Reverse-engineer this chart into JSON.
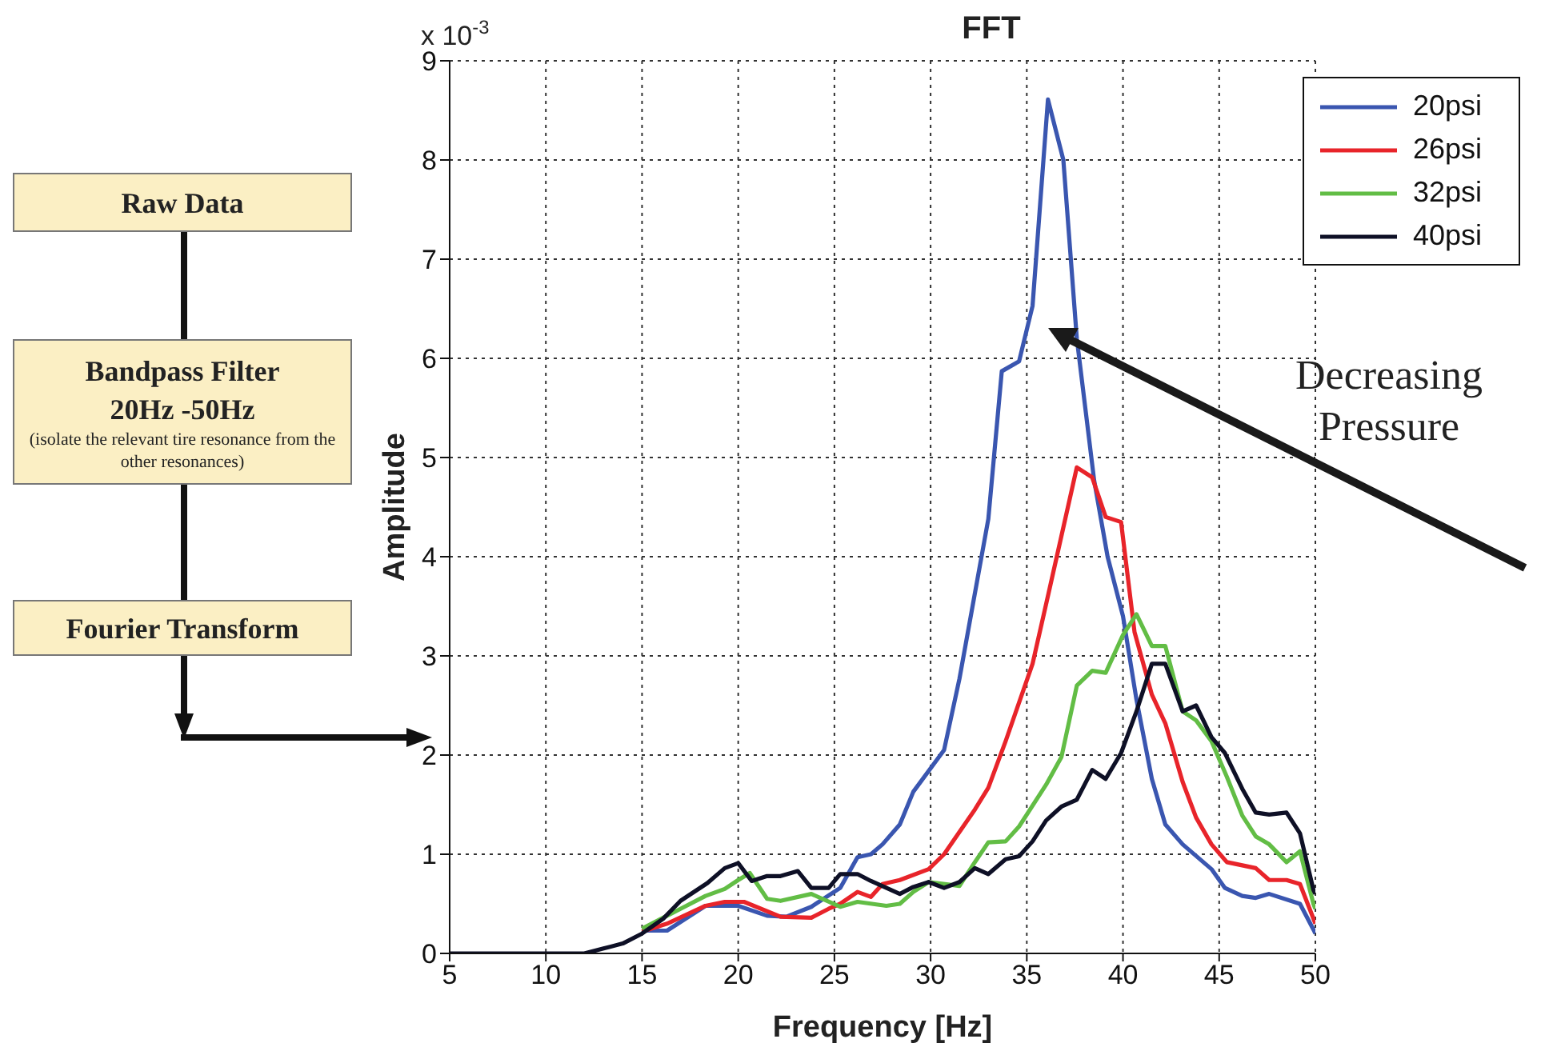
{
  "chart_data": {
    "type": "line",
    "title": "FFT",
    "xlabel": "Frequency [Hz]",
    "ylabel": "Amplitude",
    "xlim": [
      5,
      50
    ],
    "xticks": [
      5,
      10,
      15,
      20,
      25,
      30,
      35,
      40,
      45,
      50
    ],
    "ylim": [
      0,
      9
    ],
    "yticks": [
      0,
      1,
      2,
      3,
      4,
      5,
      6,
      7,
      8,
      9
    ],
    "grid": true,
    "legend": "top right",
    "marker": "none",
    "line_style": "solid",
    "annotations": [
      "x 10$^{-3}$",
      "Decreasing Pressure",
      "Raw Data",
      "Bandpass Filter",
      "20Hz -50Hz",
      "(isolate the relevant tire resonance from the other resonances)",
      "Fourier Transform"
    ],
    "series": [
      {
        "name": "20psi",
        "color": "#3a56b0",
        "x": [
          15,
          16.3,
          18.3,
          20,
          21.5,
          22.5,
          23.8,
          25.3,
          26.2,
          26.9,
          27.5,
          28.4,
          29.1,
          30.7,
          31.5,
          33,
          33.7,
          34.6,
          35.3,
          36.1,
          36.9,
          37.6,
          38.5,
          39.2,
          40,
          40.7,
          41.5,
          42.2,
          43.1,
          44.6,
          45.3,
          46.2,
          46.9,
          47.6,
          49.2,
          49.9,
          50
        ],
        "values": [
          0.23,
          0.23,
          0.48,
          0.48,
          0.38,
          0.37,
          0.47,
          0.66,
          0.97,
          1.0,
          1.1,
          1.3,
          1.63,
          2.05,
          2.77,
          4.38,
          5.87,
          5.97,
          6.53,
          8.61,
          8.0,
          6.2,
          4.77,
          4.0,
          3.4,
          2.56,
          1.76,
          1.3,
          1.1,
          0.85,
          0.66,
          0.58,
          0.56,
          0.6,
          0.5,
          0.24,
          0.2
        ]
      },
      {
        "name": "26psi",
        "color": "#e8242a",
        "x": [
          15,
          16.3,
          18.3,
          19.3,
          20.3,
          22.2,
          23.8,
          24.7,
          25.3,
          26.2,
          26.9,
          27.5,
          28.4,
          29.9,
          30.7,
          32.3,
          33,
          33.9,
          35.3,
          36.2,
          37.6,
          38.4,
          39.1,
          39.9,
          40.6,
          41.5,
          42.2,
          43.1,
          43.8,
          44.6,
          45.4,
          46.9,
          47.6,
          48.5,
          49.2,
          49.9,
          50
        ],
        "values": [
          0.22,
          0.3,
          0.48,
          0.52,
          0.52,
          0.37,
          0.36,
          0.45,
          0.5,
          0.62,
          0.57,
          0.7,
          0.74,
          0.85,
          1.0,
          1.45,
          1.67,
          2.14,
          2.92,
          3.69,
          4.9,
          4.8,
          4.4,
          4.35,
          3.24,
          2.61,
          2.32,
          1.73,
          1.37,
          1.1,
          0.92,
          0.86,
          0.74,
          0.74,
          0.7,
          0.35,
          0.3
        ]
      },
      {
        "name": "32psi",
        "color": "#62bd45",
        "x": [
          15,
          16.3,
          17,
          18.3,
          19.3,
          20,
          20.6,
          21.5,
          22.2,
          23.8,
          25.3,
          26.2,
          27.7,
          28.4,
          29.1,
          29.9,
          31.5,
          32.3,
          33,
          33.9,
          34.6,
          36,
          36.8,
          37.6,
          38.4,
          39.1,
          40,
          40.7,
          41.5,
          42.2,
          43.1,
          43.8,
          44.6,
          45.4,
          46.2,
          46.9,
          47.6,
          48.5,
          49.2,
          49.9,
          50
        ],
        "values": [
          0.25,
          0.38,
          0.45,
          0.58,
          0.65,
          0.74,
          0.81,
          0.55,
          0.53,
          0.6,
          0.47,
          0.52,
          0.48,
          0.5,
          0.62,
          0.72,
          0.68,
          0.92,
          1.12,
          1.13,
          1.28,
          1.7,
          1.98,
          2.7,
          2.85,
          2.83,
          3.21,
          3.42,
          3.1,
          3.1,
          2.44,
          2.35,
          2.14,
          1.78,
          1.39,
          1.18,
          1.1,
          0.92,
          1.03,
          0.5,
          0.45
        ]
      },
      {
        "name": "40psi",
        "color": "#0e1026",
        "x": [
          5,
          12,
          13,
          14,
          15,
          16.1,
          17,
          18.4,
          19.3,
          20,
          20.7,
          21.5,
          22.2,
          23.1,
          23.8,
          24.7,
          25.3,
          26.2,
          26.9,
          28.4,
          29.1,
          29.9,
          30.7,
          31.5,
          32.3,
          33,
          33.9,
          34.6,
          35.3,
          36,
          36.8,
          37.6,
          38.4,
          39.1,
          39.9,
          40.7,
          41.5,
          42.2,
          43.1,
          43.8,
          44.6,
          45.3,
          46.2,
          46.9,
          47.6,
          48.5,
          49.2,
          49.9,
          50
        ],
        "values": [
          0,
          0,
          0.05,
          0.1,
          0.2,
          0.35,
          0.53,
          0.71,
          0.86,
          0.91,
          0.73,
          0.78,
          0.78,
          0.83,
          0.66,
          0.66,
          0.8,
          0.8,
          0.73,
          0.6,
          0.67,
          0.72,
          0.66,
          0.72,
          0.86,
          0.8,
          0.95,
          0.98,
          1.13,
          1.34,
          1.48,
          1.55,
          1.85,
          1.76,
          2.02,
          2.44,
          2.92,
          2.92,
          2.44,
          2.5,
          2.18,
          2.02,
          1.66,
          1.42,
          1.4,
          1.42,
          1.21,
          0.64,
          0.6
        ]
      }
    ]
  }
}
